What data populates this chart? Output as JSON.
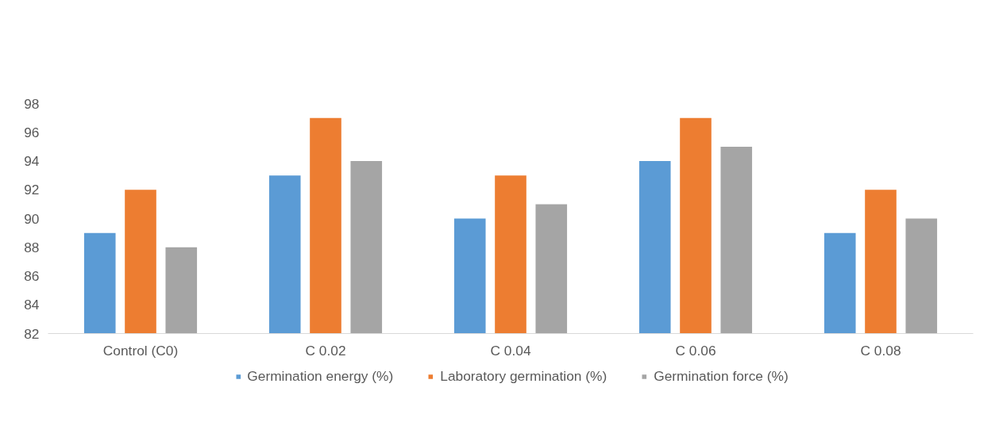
{
  "chart_data": {
    "type": "bar",
    "categories": [
      "Control (C0)",
      "C 0.02",
      "C 0.04",
      "C 0.06",
      "C 0.08"
    ],
    "series": [
      {
        "name": "Germination energy (%)",
        "color": "#5b9bd5",
        "values": [
          89,
          93,
          90,
          94,
          89
        ]
      },
      {
        "name": "Laboratory germination (%)",
        "color": "#ed7d31",
        "values": [
          92,
          97,
          93,
          97,
          92
        ]
      },
      {
        "name": "Germination force (%)",
        "color": "#a5a5a5",
        "values": [
          88,
          94,
          91,
          95,
          90
        ]
      }
    ],
    "ylim": [
      82,
      98
    ],
    "yticks": [
      82,
      84,
      86,
      88,
      90,
      92,
      94,
      96,
      98
    ],
    "grid": false,
    "legend": "bottom"
  }
}
